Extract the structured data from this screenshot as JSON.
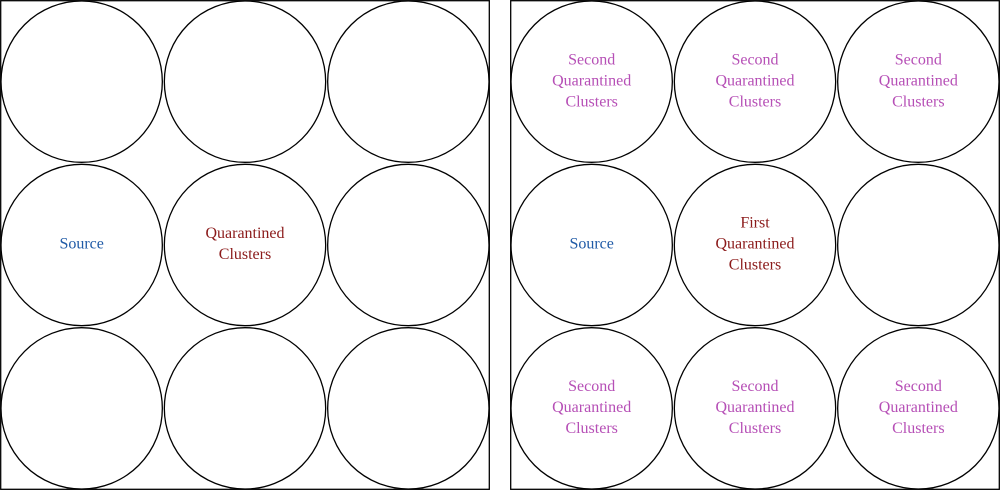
{
  "colors": {
    "source": "#1f5aa6",
    "first_quarantined": "#8b1a1a",
    "second_quarantined": "#b64fb6",
    "outline": "#000000"
  },
  "panels": [
    {
      "id": "left",
      "cells": [
        [
          {
            "lines": [],
            "color": ""
          },
          {
            "lines": [],
            "color": ""
          },
          {
            "lines": [],
            "color": ""
          }
        ],
        [
          {
            "lines": [
              "Source"
            ],
            "color": "source"
          },
          {
            "lines": [
              "Quarantined",
              "Clusters"
            ],
            "color": "first_quarantined"
          },
          {
            "lines": [],
            "color": ""
          }
        ],
        [
          {
            "lines": [],
            "color": ""
          },
          {
            "lines": [],
            "color": ""
          },
          {
            "lines": [],
            "color": ""
          }
        ]
      ]
    },
    {
      "id": "right",
      "cells": [
        [
          {
            "lines": [
              "Second",
              "Quarantined",
              "Clusters"
            ],
            "color": "second_quarantined"
          },
          {
            "lines": [
              "Second",
              "Quarantined",
              "Clusters"
            ],
            "color": "second_quarantined"
          },
          {
            "lines": [
              "Second",
              "Quarantined",
              "Clusters"
            ],
            "color": "second_quarantined"
          }
        ],
        [
          {
            "lines": [
              "Source"
            ],
            "color": "source"
          },
          {
            "lines": [
              "First",
              "Quarantined",
              "Clusters"
            ],
            "color": "first_quarantined"
          },
          {
            "lines": [],
            "color": ""
          }
        ],
        [
          {
            "lines": [
              "Second",
              "Quarantined",
              "Clusters"
            ],
            "color": "second_quarantined"
          },
          {
            "lines": [
              "Second",
              "Quarantined",
              "Clusters"
            ],
            "color": "second_quarantined"
          },
          {
            "lines": [
              "Second",
              "Quarantined",
              "Clusters"
            ],
            "color": "second_quarantined"
          }
        ]
      ]
    }
  ]
}
